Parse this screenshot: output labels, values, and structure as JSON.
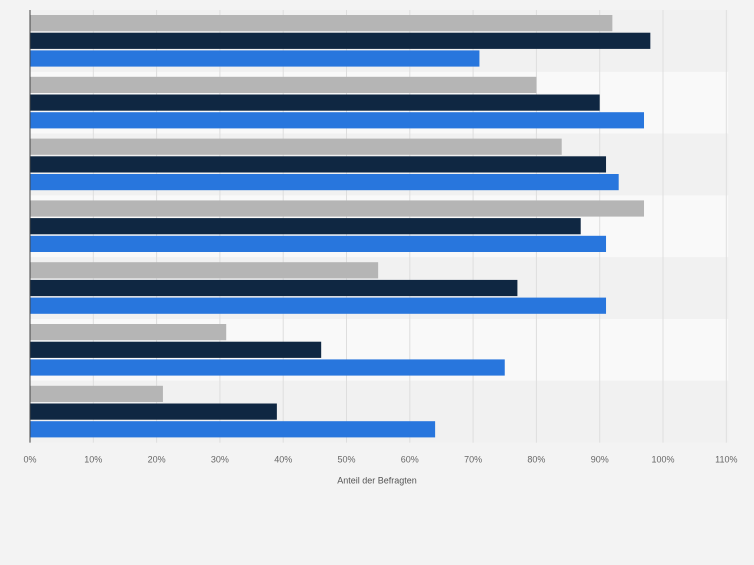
{
  "chart_data": {
    "type": "bar",
    "orientation": "horizontal",
    "categories": [
      "",
      "",
      "",
      "",
      "",
      "",
      ""
    ],
    "series": [
      {
        "color": "#b5b5b5",
        "values": [
          92,
          80,
          84,
          97,
          55,
          31,
          21
        ]
      },
      {
        "color": "#0f2742",
        "values": [
          98,
          90,
          91,
          87,
          77,
          46,
          39
        ]
      },
      {
        "color": "#2876dd",
        "values": [
          71,
          97,
          93,
          91,
          91,
          75,
          64
        ]
      }
    ],
    "xlabel": "Anteil der Befragten",
    "xlim": [
      0,
      110
    ],
    "xticks": [
      "0%",
      "10%",
      "20%",
      "30%",
      "40%",
      "50%",
      "60%",
      "70%",
      "80%",
      "90%",
      "100%",
      "110%"
    ],
    "grid": true,
    "legend": "none"
  }
}
